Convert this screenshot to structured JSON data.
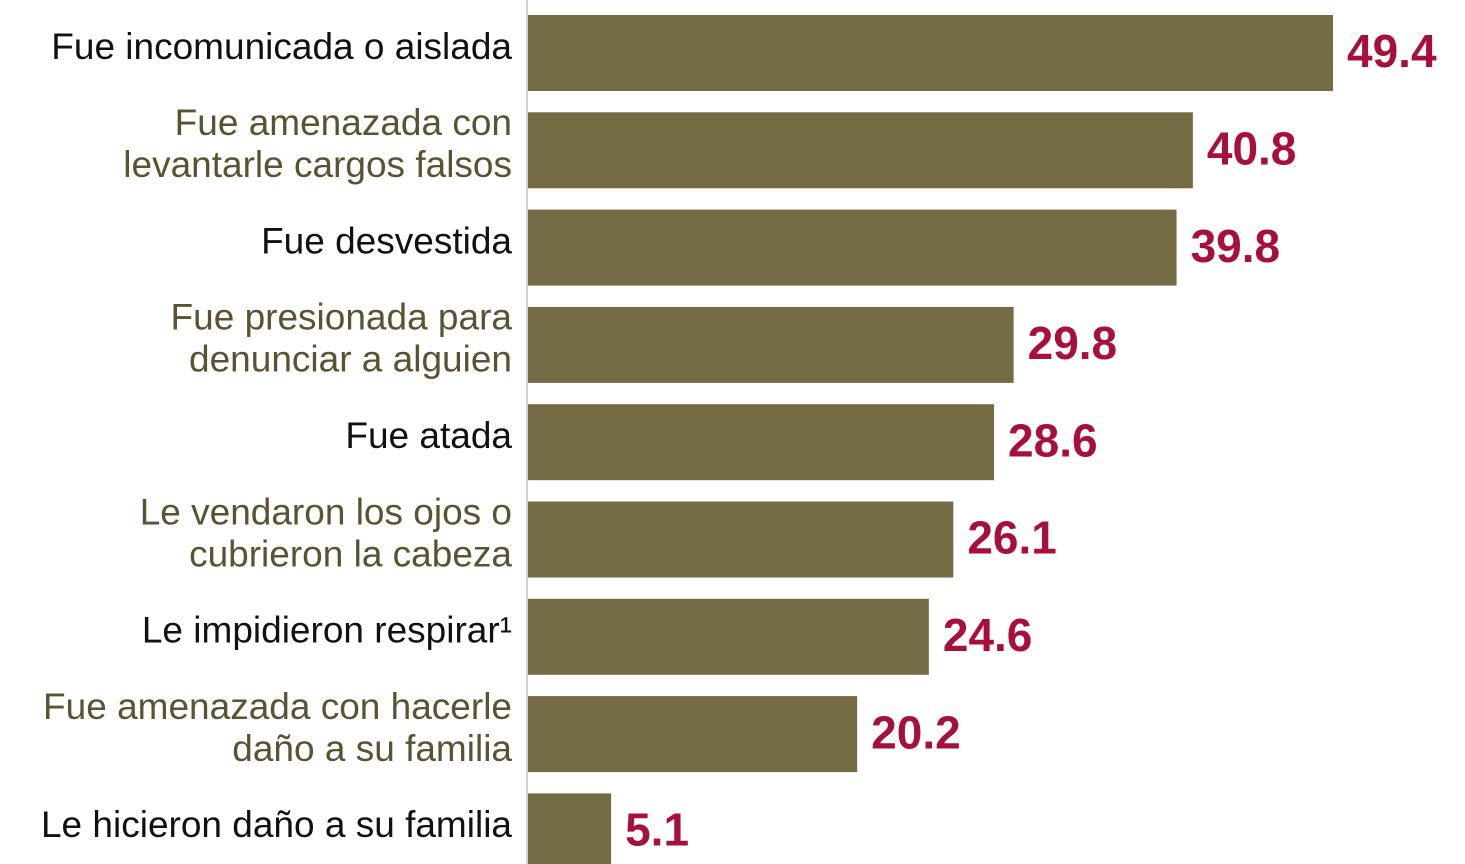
{
  "chart_data": {
    "type": "bar",
    "orientation": "horizontal",
    "categories": [
      [
        "Fue incomunicada o aislada"
      ],
      [
        "Fue amenazada con",
        "levantarle cargos falsos"
      ],
      [
        "Fue desvestida"
      ],
      [
        "Fue presionada para",
        "denunciar a alguien"
      ],
      [
        "Fue atada"
      ],
      [
        "Le vendaron los ojos o",
        "cubrieron la cabeza"
      ],
      [
        "Le impidieron respirar¹"
      ],
      [
        "Fue amenazada con hacerle",
        "daño a su familia"
      ],
      [
        "Le hicieron daño a su familia"
      ]
    ],
    "values": [
      49.4,
      40.8,
      39.8,
      29.8,
      28.6,
      26.1,
      24.6,
      20.2,
      5.1
    ],
    "color": "#746b45",
    "value_label_color": "#a8103c",
    "xlim": [
      0,
      57.5
    ]
  }
}
